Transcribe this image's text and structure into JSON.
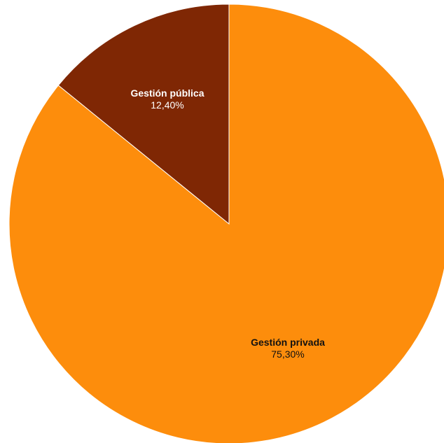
{
  "chart_data": {
    "type": "pie",
    "title": "",
    "slices": [
      {
        "label": "Gestión pública",
        "value": 12.4,
        "display": "12,40%",
        "color": "#7f2704",
        "text_color": "#ffffff"
      },
      {
        "label": "Gestión privada",
        "value": 75.3,
        "display": "75,30%",
        "color": "#fd8d0c",
        "text_color": "#111111"
      }
    ],
    "start": "12 o'clock",
    "direction": "counter-clockwise from public slice"
  }
}
